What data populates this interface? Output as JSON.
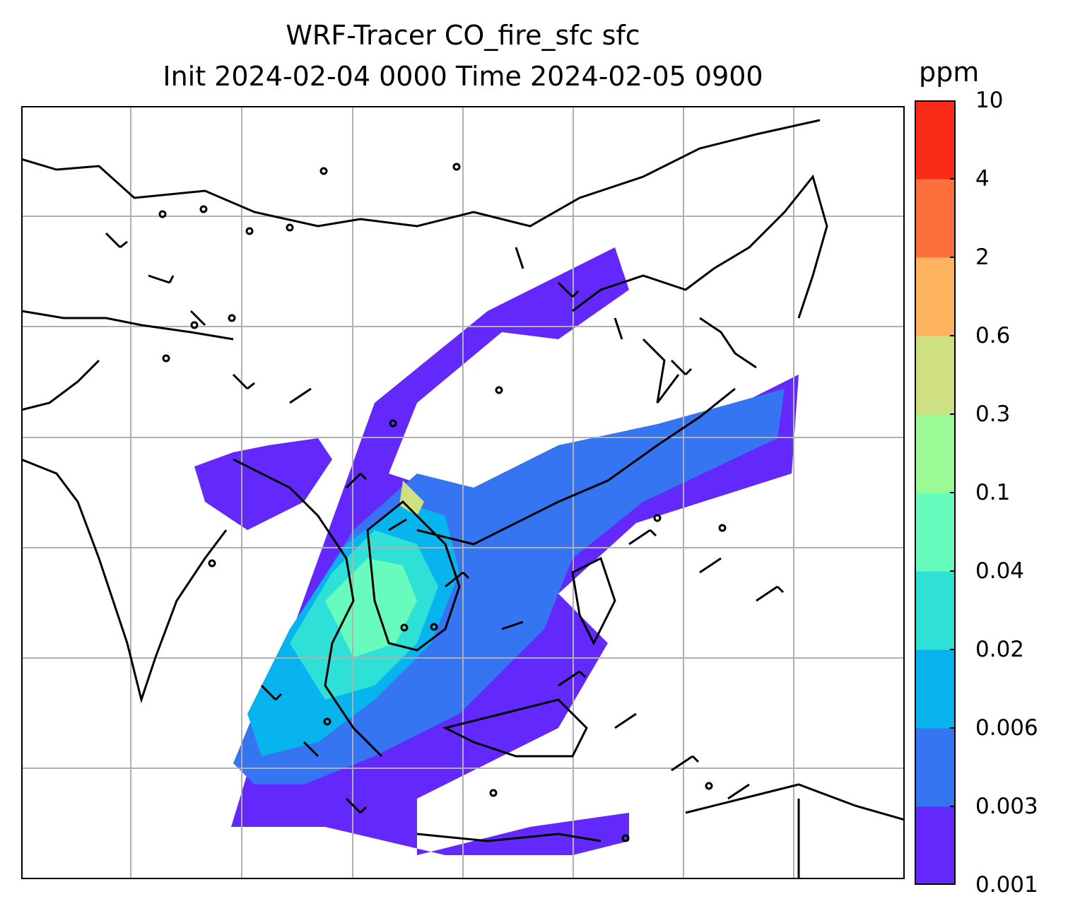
{
  "title": {
    "line1": "WRF-Tracer CO_fire_sfc sfc",
    "line2": "Init 2024-02-04 0000 Time 2024-02-05 0900"
  },
  "colorbar": {
    "unit": "ppm",
    "levels": [
      "0.001",
      "0.003",
      "0.006",
      "0.02",
      "0.04",
      "0.1",
      "0.3",
      "0.6",
      "2",
      "4",
      "10"
    ],
    "colors": [
      "#6328fb",
      "#3575f2",
      "#08b4ee",
      "#2fe0d6",
      "#68fbbe",
      "#9bfa96",
      "#cfe083",
      "#fdb25f",
      "#fd6f3d",
      "#fb2a17"
    ]
  },
  "map": {
    "background": "#ffffff",
    "gridline_color": "#b0b0b0",
    "coastline_color": "#000000",
    "features": [
      "coastlines",
      "country-borders",
      "gridlines",
      "wind-barbs",
      "co-tracer-shading"
    ]
  }
}
